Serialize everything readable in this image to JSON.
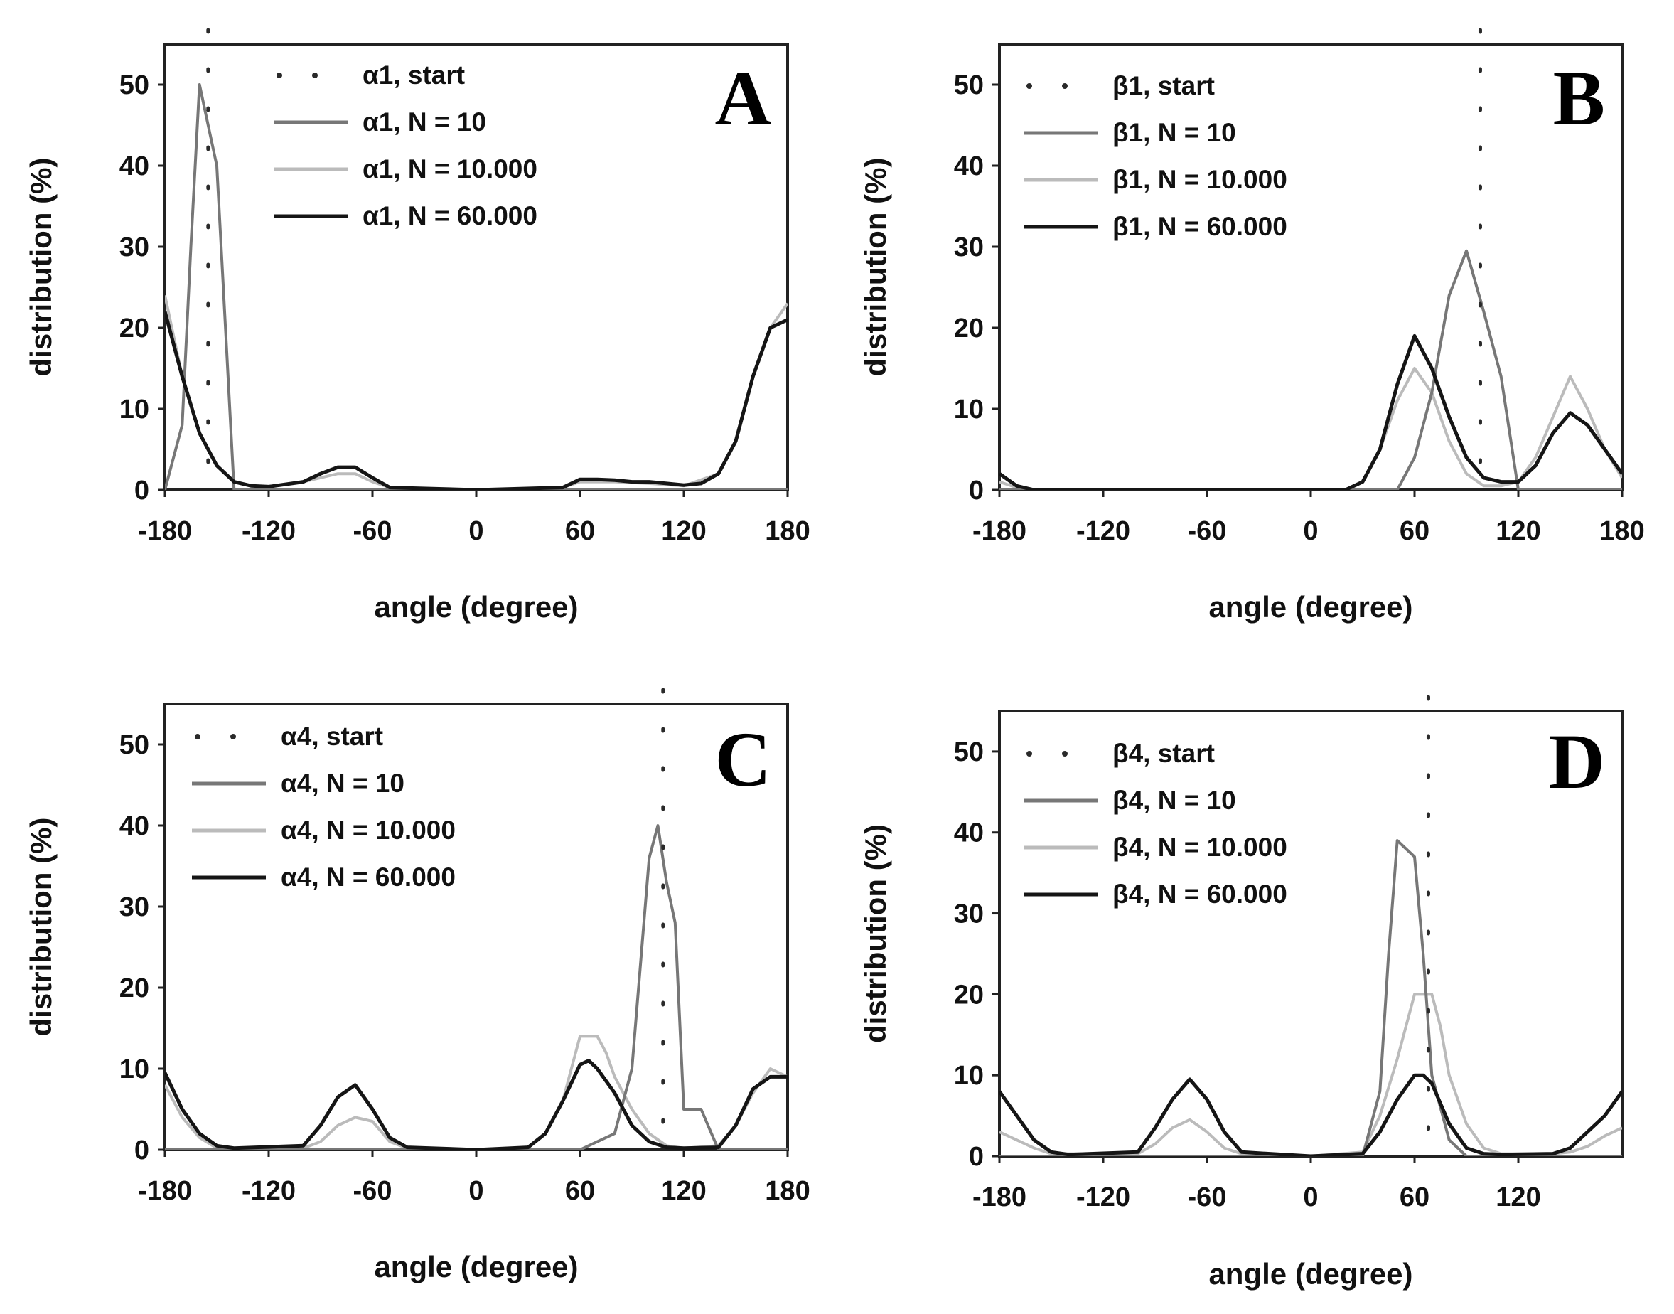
{
  "colors": {
    "start": "#2a2a2a",
    "n10": "#777777",
    "n10000": "#bbbbbb",
    "n60000": "#151515",
    "frame": "#222222"
  },
  "chart_data": [
    {
      "type": "line",
      "panel_label": "A",
      "xlabel": "angle (degree)",
      "ylabel": "distribution (%)",
      "xlim": [
        -180,
        180
      ],
      "ylim": [
        0,
        55
      ],
      "xticks": [
        -180,
        -120,
        -60,
        0,
        60,
        120,
        180
      ],
      "xtick_labels": [
        "-180",
        "-120",
        "-60",
        "0",
        "60",
        "120",
        "180"
      ],
      "yticks": [
        0,
        10,
        20,
        30,
        40,
        50
      ],
      "ytick_labels": [
        "0",
        "10",
        "20",
        "30",
        "40",
        "50"
      ],
      "legend_position": "top-center",
      "series": [
        {
          "name": "α1, start",
          "style": "start",
          "vline_x": -155
        },
        {
          "name": "α1, N = 10",
          "style": "n10",
          "x": [
            -180,
            -170,
            -165,
            -160,
            -155,
            -150,
            -145,
            -140,
            180
          ],
          "y": [
            0,
            8,
            30,
            50,
            45,
            40,
            20,
            0,
            0
          ]
        },
        {
          "name": "α1, N = 10.000",
          "style": "n10000",
          "x": [
            -180,
            -170,
            -160,
            -150,
            -140,
            -130,
            -120,
            -100,
            -80,
            -70,
            -60,
            -50,
            0,
            50,
            60,
            70,
            80,
            100,
            120,
            140,
            150,
            160,
            170,
            180
          ],
          "y": [
            24,
            14,
            7,
            3,
            1,
            0.5,
            0.4,
            1,
            2,
            2,
            1,
            0.3,
            0,
            0.3,
            1,
            1,
            1,
            0.8,
            0.5,
            2,
            6,
            14,
            20,
            23
          ]
        },
        {
          "name": "α1, N = 60.000",
          "style": "n60000",
          "x": [
            -180,
            -170,
            -160,
            -150,
            -140,
            -130,
            -120,
            -100,
            -90,
            -80,
            -70,
            -60,
            -50,
            0,
            50,
            60,
            70,
            80,
            90,
            100,
            110,
            120,
            130,
            140,
            150,
            160,
            170,
            180
          ],
          "y": [
            22,
            14,
            7,
            3,
            1,
            0.5,
            0.4,
            1,
            2,
            2.8,
            2.8,
            1.5,
            0.3,
            0,
            0.3,
            1.3,
            1.3,
            1.2,
            1,
            1,
            0.8,
            0.6,
            0.8,
            2,
            6,
            14,
            20,
            21
          ]
        }
      ]
    },
    {
      "type": "line",
      "panel_label": "B",
      "xlabel": "angle (degree)",
      "ylabel": "distribution (%)",
      "xlim": [
        -180,
        180
      ],
      "ylim": [
        0,
        55
      ],
      "xticks": [
        -180,
        -120,
        -60,
        0,
        60,
        120,
        180
      ],
      "xtick_labels": [
        "-180",
        "-120",
        "-60",
        "0",
        "60",
        "120",
        "180"
      ],
      "yticks": [
        0,
        10,
        20,
        30,
        40,
        50
      ],
      "ytick_labels": [
        "0",
        "10",
        "20",
        "30",
        "40",
        "50"
      ],
      "legend_position": "top-left",
      "series": [
        {
          "name": "β1, start",
          "style": "start",
          "vline_x": 98
        },
        {
          "name": "β1, N = 10",
          "style": "n10",
          "x": [
            -180,
            50,
            60,
            70,
            80,
            90,
            100,
            110,
            120,
            180
          ],
          "y": [
            0,
            0,
            4,
            12,
            24,
            29.5,
            22,
            14,
            0,
            0
          ]
        },
        {
          "name": "β1, N = 10.000",
          "style": "n10000",
          "x": [
            -180,
            -170,
            -160,
            20,
            30,
            40,
            50,
            60,
            70,
            80,
            90,
            100,
            110,
            120,
            130,
            140,
            150,
            160,
            170,
            180
          ],
          "y": [
            1,
            0.3,
            0,
            0,
            1,
            5,
            11,
            15,
            12,
            6,
            2,
            0.5,
            0.5,
            1,
            4,
            9,
            14,
            10,
            5,
            1.5
          ]
        },
        {
          "name": "β1, N = 60.000",
          "style": "n60000",
          "x": [
            -180,
            -170,
            -160,
            20,
            30,
            40,
            50,
            60,
            70,
            80,
            90,
            100,
            110,
            120,
            130,
            140,
            150,
            160,
            170,
            180
          ],
          "y": [
            2,
            0.5,
            0,
            0,
            1,
            5,
            13,
            19,
            15,
            9,
            4,
            1.5,
            1,
            1,
            3,
            7,
            9.5,
            8,
            5,
            2
          ]
        }
      ]
    },
    {
      "type": "line",
      "panel_label": "C",
      "xlabel": "angle (degree)",
      "ylabel": "distribution (%)",
      "xlim": [
        -180,
        180
      ],
      "ylim": [
        0,
        55
      ],
      "xticks": [
        -180,
        -120,
        -60,
        0,
        60,
        120,
        180
      ],
      "xtick_labels": [
        "-180",
        "-120",
        "-60",
        "0",
        "60",
        "120",
        "180"
      ],
      "yticks": [
        0,
        10,
        20,
        30,
        40,
        50
      ],
      "ytick_labels": [
        "0",
        "10",
        "20",
        "30",
        "40",
        "50"
      ],
      "legend_position": "top-left",
      "series": [
        {
          "name": "α4, start",
          "style": "start",
          "vline_x": 108
        },
        {
          "name": "α4, N = 10",
          "style": "n10",
          "x": [
            -180,
            60,
            70,
            80,
            90,
            100,
            105,
            110,
            115,
            120,
            130,
            140,
            180
          ],
          "y": [
            0,
            0,
            1,
            2,
            10,
            36,
            40,
            33,
            28,
            5,
            5,
            0,
            0
          ]
        },
        {
          "name": "α4, N = 10.000",
          "style": "n10000",
          "x": [
            -180,
            -170,
            -160,
            -150,
            -100,
            -90,
            -80,
            -70,
            -60,
            -50,
            -40,
            0,
            30,
            40,
            50,
            55,
            60,
            70,
            75,
            80,
            90,
            100,
            110,
            120,
            140,
            150,
            160,
            170,
            180
          ],
          "y": [
            8,
            4,
            1.5,
            0.2,
            0.2,
            1,
            3,
            4,
            3.5,
            1,
            0.2,
            0,
            0.3,
            2,
            6,
            10,
            14,
            14,
            12,
            9,
            5,
            2,
            0.5,
            0.2,
            0.5,
            3,
            7,
            10,
            9
          ]
        },
        {
          "name": "α4, N = 60.000",
          "style": "n60000",
          "x": [
            -180,
            -170,
            -160,
            -150,
            -140,
            -100,
            -90,
            -80,
            -70,
            -60,
            -50,
            -40,
            0,
            30,
            40,
            50,
            60,
            65,
            70,
            80,
            90,
            100,
            110,
            120,
            140,
            150,
            160,
            170,
            180
          ],
          "y": [
            9.5,
            5,
            2,
            0.5,
            0.2,
            0.5,
            3,
            6.5,
            8,
            5,
            1.5,
            0.3,
            0,
            0.3,
            2,
            6,
            10.5,
            11,
            10,
            7,
            3,
            1,
            0.3,
            0.2,
            0.3,
            3,
            7.5,
            9,
            9
          ]
        }
      ]
    },
    {
      "type": "line",
      "panel_label": "D",
      "xlabel": "angle (degree)",
      "ylabel": "distribution (%)",
      "xlim": [
        -180,
        180
      ],
      "ylim": [
        0,
        55
      ],
      "xticks": [
        -180,
        -120,
        -60,
        0,
        60,
        120
      ],
      "xtick_labels": [
        "-180",
        "-120",
        "-60",
        "0",
        "60",
        "120"
      ],
      "yticks": [
        0,
        10,
        20,
        30,
        40,
        50
      ],
      "ytick_labels": [
        "0",
        "10",
        "20",
        "30",
        "40",
        "50"
      ],
      "legend_position": "top-left",
      "series": [
        {
          "name": "β4, start",
          "style": "start",
          "vline_x": 68
        },
        {
          "name": "β4, N = 10",
          "style": "n10",
          "x": [
            -180,
            30,
            40,
            45,
            50,
            55,
            60,
            65,
            70,
            80,
            90,
            180
          ],
          "y": [
            0,
            0,
            8,
            25,
            39,
            38,
            37,
            25,
            10,
            2,
            0,
            0
          ]
        },
        {
          "name": "β4, N = 10.000",
          "style": "n10000",
          "x": [
            -180,
            -170,
            -160,
            -150,
            -100,
            -90,
            -80,
            -70,
            -60,
            -50,
            -40,
            0,
            30,
            40,
            50,
            60,
            70,
            75,
            80,
            90,
            100,
            110,
            140,
            150,
            160,
            170,
            180
          ],
          "y": [
            3,
            2,
            1,
            0.3,
            0.3,
            1.5,
            3.5,
            4.5,
            3,
            1,
            0.3,
            0,
            0.5,
            5,
            12,
            20,
            20,
            16,
            10,
            4,
            1,
            0.3,
            0.3,
            0.5,
            1.2,
            2.5,
            3.5
          ]
        },
        {
          "name": "β4, N = 60.000",
          "style": "n60000",
          "x": [
            -180,
            -170,
            -160,
            -150,
            -140,
            -100,
            -90,
            -80,
            -70,
            -60,
            -50,
            -40,
            0,
            30,
            40,
            50,
            60,
            65,
            70,
            80,
            90,
            100,
            110,
            140,
            150,
            160,
            170,
            180
          ],
          "y": [
            8,
            5,
            2,
            0.5,
            0.2,
            0.5,
            3.5,
            7,
            9.5,
            7,
            3,
            0.5,
            0,
            0.3,
            3,
            7,
            10,
            10,
            9,
            4,
            1,
            0.3,
            0.2,
            0.3,
            1,
            3,
            5,
            8
          ]
        }
      ]
    }
  ]
}
